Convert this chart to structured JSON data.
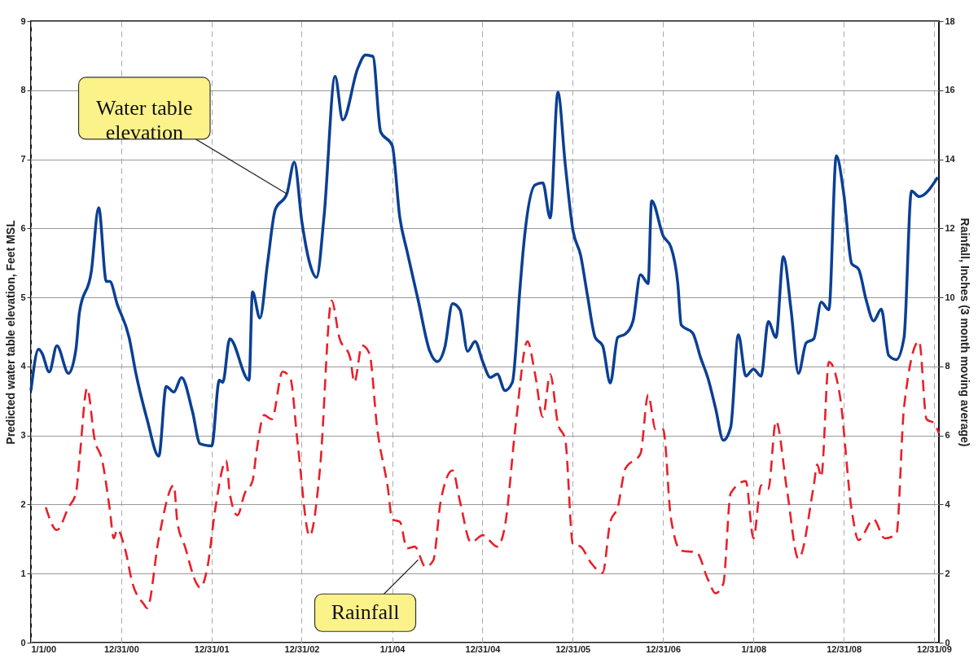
{
  "chart_data": {
    "type": "line",
    "ylabel": "Predicted water table elevation, Feet MSL",
    "y2label": "Rainfall, Inches (3 month moving average)",
    "xlim": [
      "2000-01-01",
      "2010-01-20"
    ],
    "xticks": [
      {
        "value": "2000-01-01",
        "label": "1/1/00"
      },
      {
        "value": "2000-12-31",
        "label": "12/31/00"
      },
      {
        "value": "2001-12-31",
        "label": "12/31/01"
      },
      {
        "value": "2002-12-31",
        "label": "12/31/02"
      },
      {
        "value": "2004-01-01",
        "label": "1/1/04"
      },
      {
        "value": "2004-12-31",
        "label": "12/31/04"
      },
      {
        "value": "2005-12-31",
        "label": "12/31/05"
      },
      {
        "value": "2006-12-31",
        "label": "12/31/06"
      },
      {
        "value": "2008-01-01",
        "label": "1/1/08"
      },
      {
        "value": "2008-12-31",
        "label": "12/31/08"
      },
      {
        "value": "2009-12-31",
        "label": "12/31/09"
      }
    ],
    "ylim": [
      0,
      9
    ],
    "yticks": [
      0,
      1,
      2,
      3,
      4,
      5,
      6,
      7,
      8,
      9
    ],
    "y2lim": [
      0,
      18
    ],
    "y2ticks": [
      0,
      2,
      4,
      6,
      8,
      10,
      12,
      14,
      16,
      18
    ],
    "grid": true,
    "series": [
      {
        "color": "#0b3f94",
        "line_style": "solid",
        "x": [
          "2000-01-01",
          "2000-02-01",
          "2000-02-15",
          "2000-03-15",
          "2000-04-15",
          "2000-06-01",
          "2000-07-01",
          "2000-07-15",
          "2000-09-01",
          "2000-10-01",
          "2000-11-01",
          "2000-11-15",
          "2000-12-15",
          "2001-02-01",
          "2001-03-01",
          "2001-04-15",
          "2001-06-01",
          "2001-07-01",
          "2001-08-01",
          "2001-09-01",
          "2001-10-15",
          "2001-11-15",
          "2002-01-01",
          "2002-02-01",
          "2002-02-15",
          "2002-03-15",
          "2002-06-01",
          "2002-06-15",
          "2002-07-15",
          "2002-08-15",
          "2002-09-15",
          "2002-11-01",
          "2002-12-01",
          "2003-01-01",
          "2003-02-01",
          "2003-03-01",
          "2003-04-01",
          "2003-05-15",
          "2003-06-15",
          "2003-08-15",
          "2003-09-15",
          "2003-10-15",
          "2003-11-15",
          "2004-01-01",
          "2004-02-01",
          "2004-03-01",
          "2004-04-15",
          "2004-06-01",
          "2004-07-01",
          "2004-08-01",
          "2004-09-01",
          "2004-10-01",
          "2004-11-01",
          "2004-12-01",
          "2005-01-01",
          "2005-02-01",
          "2005-03-01",
          "2005-04-01",
          "2005-05-01",
          "2005-06-01",
          "2005-06-15",
          "2005-08-01",
          "2005-09-01",
          "2005-10-01",
          "2005-11-01",
          "2005-12-01",
          "2006-01-01",
          "2006-02-01",
          "2006-03-01",
          "2006-04-01",
          "2006-05-01",
          "2006-06-01",
          "2006-07-01",
          "2006-08-01",
          "2006-09-01",
          "2006-10-01",
          "2006-11-01",
          "2006-11-15",
          "2007-01-01",
          "2007-02-01",
          "2007-03-01",
          "2007-03-15",
          "2007-05-01",
          "2007-06-01",
          "2007-07-01",
          "2007-08-01",
          "2007-09-01",
          "2007-10-01",
          "2007-11-01",
          "2007-12-01",
          "2008-01-01",
          "2008-02-01",
          "2008-03-01",
          "2008-04-01",
          "2008-05-01",
          "2008-06-01",
          "2008-07-01",
          "2008-08-01",
          "2008-09-01",
          "2008-10-01",
          "2008-11-01",
          "2008-12-01",
          "2009-01-01",
          "2009-02-01",
          "2009-03-01",
          "2009-04-01",
          "2009-05-01",
          "2009-06-01",
          "2009-07-01",
          "2009-08-01",
          "2009-09-01",
          "2009-10-01",
          "2009-11-01",
          "2010-01-15"
        ],
        "values": [
          3.65,
          4.25,
          4.19,
          3.92,
          4.3,
          3.9,
          4.25,
          4.78,
          5.37,
          6.3,
          5.23,
          5.23,
          4.9,
          4.42,
          3.89,
          3.23,
          2.7,
          3.71,
          3.63,
          3.84,
          3.35,
          2.88,
          2.85,
          3.8,
          3.77,
          4.4,
          3.8,
          5.08,
          4.7,
          5.5,
          6.27,
          6.5,
          6.96,
          6.09,
          5.5,
          5.29,
          6.2,
          8.2,
          7.57,
          8.32,
          8.51,
          8.49,
          7.4,
          7.2,
          6.15,
          5.67,
          4.96,
          4.22,
          4.07,
          4.28,
          4.91,
          4.82,
          4.22,
          4.36,
          4.07,
          3.84,
          3.89,
          3.65,
          3.77,
          5.14,
          5.73,
          6.63,
          6.66,
          6.15,
          7.97,
          6.92,
          5.97,
          5.61,
          5.02,
          4.42,
          4.3,
          3.76,
          4.42,
          4.47,
          4.66,
          5.33,
          5.2,
          6.4,
          5.89,
          5.73,
          5.2,
          4.6,
          4.48,
          4.13,
          3.83,
          3.39,
          2.93,
          3.12,
          4.46,
          3.86,
          3.96,
          3.86,
          4.65,
          4.42,
          5.59,
          4.82,
          3.9,
          4.34,
          4.4,
          4.93,
          4.82,
          7.05,
          6.48,
          5.49,
          5.41,
          4.96,
          4.66,
          4.83,
          4.16,
          4.1,
          4.42,
          6.54,
          6.46,
          6.74
        ]
      },
      {
        "color": "#e8202a",
        "line_style": "dashed",
        "axis": "y2",
        "x": [
          "2000-03-01",
          "2000-04-15",
          "2000-06-01",
          "2000-07-01",
          "2000-07-15",
          "2000-08-15",
          "2000-09-15",
          "2000-10-15",
          "2000-11-15",
          "2000-12-01",
          "2000-12-15",
          "2001-01-15",
          "2001-02-15",
          "2001-04-01",
          "2001-04-15",
          "2001-06-01",
          "2001-08-01",
          "2001-08-15",
          "2001-09-15",
          "2001-11-01",
          "2001-11-15",
          "2001-12-15",
          "2002-01-15",
          "2002-03-01",
          "2002-03-15",
          "2002-04-15",
          "2002-05-15",
          "2002-06-15",
          "2002-07-01",
          "2002-08-01",
          "2002-09-01",
          "2002-10-15",
          "2002-11-15",
          "2002-12-15",
          "2003-02-01",
          "2003-03-15",
          "2003-05-01",
          "2003-06-01",
          "2003-07-15",
          "2003-08-01",
          "2003-09-01",
          "2003-10-01",
          "2003-11-01",
          "2003-12-15",
          "2004-01-01",
          "2004-02-01",
          "2004-03-01",
          "2004-04-01",
          "2004-05-15",
          "2004-06-15",
          "2004-07-15",
          "2004-09-01",
          "2004-10-01",
          "2004-11-15",
          "2005-01-01",
          "2005-03-01",
          "2005-04-01",
          "2005-05-15",
          "2005-07-01",
          "2005-08-01",
          "2005-09-01",
          "2005-10-01",
          "2005-11-01",
          "2005-12-01",
          "2006-01-01",
          "2006-02-01",
          "2006-03-15",
          "2006-05-01",
          "2006-06-01",
          "2006-07-01",
          "2006-08-01",
          "2006-10-01",
          "2006-11-01",
          "2006-12-01",
          "2007-01-01",
          "2007-02-01",
          "2007-03-15",
          "2007-05-15",
          "2007-07-01",
          "2007-08-01",
          "2007-09-01",
          "2007-10-01",
          "2007-12-01",
          "2008-01-01",
          "2008-02-01",
          "2008-03-01",
          "2008-04-01",
          "2008-05-15",
          "2008-07-01",
          "2008-09-01",
          "2008-09-15",
          "2008-10-01",
          "2008-11-01",
          "2008-12-15",
          "2009-02-01",
          "2009-03-01",
          "2009-05-01",
          "2009-06-15",
          "2009-08-01",
          "2009-09-01",
          "2009-11-01",
          "2009-12-01",
          "2010-01-01",
          "2010-01-20"
        ],
        "values": [
          3.92,
          3.26,
          3.92,
          4.33,
          5.28,
          7.37,
          5.87,
          5.28,
          3.85,
          3.02,
          3.28,
          2.73,
          1.71,
          1.12,
          1.0,
          3.02,
          4.56,
          3.5,
          2.78,
          1.71,
          1.59,
          2.19,
          3.85,
          5.28,
          4.33,
          3.69,
          4.33,
          4.68,
          5.52,
          6.59,
          6.47,
          7.85,
          7.66,
          5.75,
          3.09,
          5.04,
          9.91,
          8.84,
          8.25,
          7.54,
          8.61,
          8.37,
          6.23,
          4.45,
          3.57,
          3.5,
          2.73,
          2.78,
          2.19,
          2.38,
          4.09,
          4.99,
          4.09,
          2.9,
          3.11,
          2.78,
          3.38,
          6.35,
          8.73,
          7.77,
          6.54,
          7.77,
          6.35,
          5.87,
          2.85,
          2.78,
          2.31,
          2.02,
          3.5,
          3.92,
          5.04,
          5.47,
          7.18,
          6.18,
          6.18,
          3.61,
          2.66,
          2.62,
          1.83,
          1.43,
          1.71,
          4.33,
          4.68,
          3.02,
          4.56,
          4.45,
          6.42,
          4.45,
          2.43,
          4.56,
          5.16,
          4.8,
          8.13,
          7.18,
          3.85,
          2.97,
          3.57,
          3.02,
          3.14,
          6.82,
          8.73,
          6.47,
          6.35,
          6.06
        ]
      }
    ],
    "annotations": [
      {
        "text": "Water table\nelevation",
        "x": "2002-11-01",
        "y": 6.5
      },
      {
        "text": "Rainfall",
        "x": "2004-04-15",
        "y": 1.2
      }
    ]
  }
}
